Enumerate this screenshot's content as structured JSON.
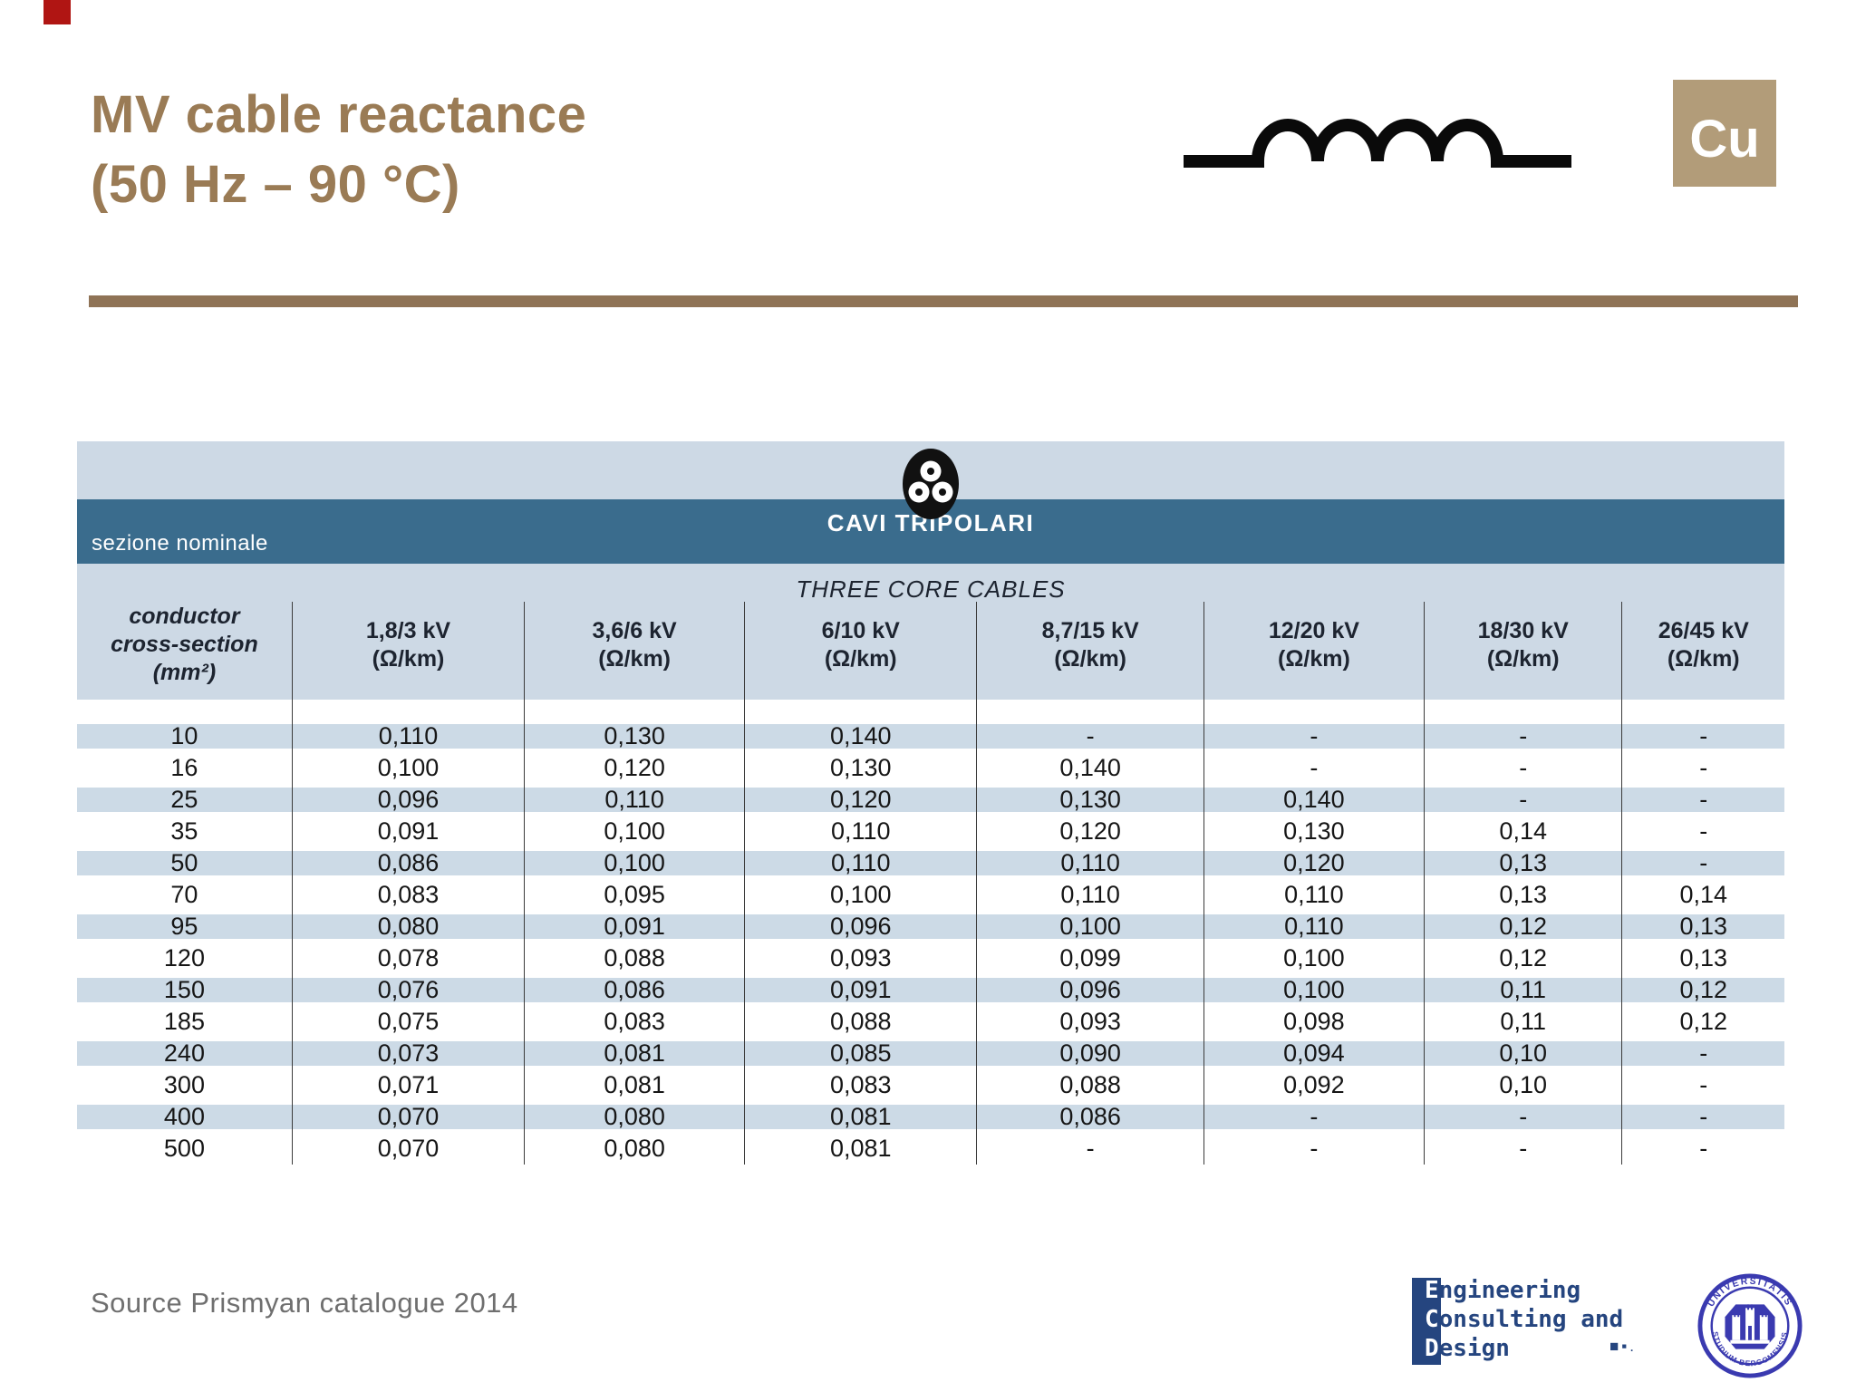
{
  "header": {
    "title_line1": "MV cable reactance",
    "title_line2": "(50 Hz – 90 °C)",
    "cu_badge_label": "Cu"
  },
  "table": {
    "category_label_italian": "sezione nominale",
    "group_title_italian": "CAVI TRIPOLARI",
    "group_title_english": "THREE CORE CABLES",
    "first_column_header": {
      "line1": "conductor",
      "line2": "cross-section",
      "line3": "(mm²)"
    },
    "voltage_columns": [
      {
        "voltage": "1,8/3 kV",
        "unit": "(Ω/km)"
      },
      {
        "voltage": "3,6/6 kV",
        "unit": "(Ω/km)"
      },
      {
        "voltage": "6/10 kV",
        "unit": "(Ω/km)"
      },
      {
        "voltage": "8,7/15 kV",
        "unit": "(Ω/km)"
      },
      {
        "voltage": "12/20 kV",
        "unit": "(Ω/km)"
      },
      {
        "voltage": "18/30 kV",
        "unit": "(Ω/km)"
      },
      {
        "voltage": "26/45 kV",
        "unit": "(Ω/km)"
      }
    ],
    "rows": [
      {
        "cross_section": "10",
        "values": [
          "0,110",
          "0,130",
          "0,140",
          "-",
          "-",
          "-",
          "-"
        ]
      },
      {
        "cross_section": "16",
        "values": [
          "0,100",
          "0,120",
          "0,130",
          "0,140",
          "-",
          "-",
          "-"
        ]
      },
      {
        "cross_section": "25",
        "values": [
          "0,096",
          "0,110",
          "0,120",
          "0,130",
          "0,140",
          "-",
          "-"
        ]
      },
      {
        "cross_section": "35",
        "values": [
          "0,091",
          "0,100",
          "0,110",
          "0,120",
          "0,130",
          "0,14",
          "-"
        ]
      },
      {
        "cross_section": "50",
        "values": [
          "0,086",
          "0,100",
          "0,110",
          "0,110",
          "0,120",
          "0,13",
          "-"
        ]
      },
      {
        "cross_section": "70",
        "values": [
          "0,083",
          "0,095",
          "0,100",
          "0,110",
          "0,110",
          "0,13",
          "0,14"
        ]
      },
      {
        "cross_section": "95",
        "values": [
          "0,080",
          "0,091",
          "0,096",
          "0,100",
          "0,110",
          "0,12",
          "0,13"
        ]
      },
      {
        "cross_section": "120",
        "values": [
          "0,078",
          "0,088",
          "0,093",
          "0,099",
          "0,100",
          "0,12",
          "0,13"
        ]
      },
      {
        "cross_section": "150",
        "values": [
          "0,076",
          "0,086",
          "0,091",
          "0,096",
          "0,100",
          "0,11",
          "0,12"
        ]
      },
      {
        "cross_section": "185",
        "values": [
          "0,075",
          "0,083",
          "0,088",
          "0,093",
          "0,098",
          "0,11",
          "0,12"
        ]
      },
      {
        "cross_section": "240",
        "values": [
          "0,073",
          "0,081",
          "0,085",
          "0,090",
          "0,094",
          "0,10",
          "-"
        ]
      },
      {
        "cross_section": "300",
        "values": [
          "0,071",
          "0,081",
          "0,083",
          "0,088",
          "0,092",
          "0,10",
          "-"
        ]
      },
      {
        "cross_section": "400",
        "values": [
          "0,070",
          "0,080",
          "0,081",
          "0,086",
          "-",
          "-",
          "-"
        ]
      },
      {
        "cross_section": "500",
        "values": [
          "0,070",
          "0,080",
          "0,081",
          "-",
          "-",
          "-",
          "-"
        ]
      }
    ]
  },
  "footer": {
    "source_text": "Source Prismyan catalogue 2014",
    "ecd_logo": {
      "lines": [
        "Engineering",
        "Consulting and",
        "Design"
      ],
      "dots": "■▪."
    },
    "emblem": {
      "top_text": "UNIVERSITATIS",
      "bottom_text": "STUDIUM BERGOMENSIS"
    }
  },
  "icons": {
    "inductor": "inductor-coil-icon",
    "cable": "three-core-cable-icon",
    "emblem": "university-seal-icon"
  },
  "colors": {
    "accent_brown": "#9a7b55",
    "divider_brown": "#8f7356",
    "cu_badge_tan": "#b29c79",
    "band_dark_blue": "#3a6c8d",
    "band_light_blue": "#cdd9e5",
    "row_stripe_blue": "#ccdae6",
    "logo_navy": "#25457f",
    "emblem_blue": "#3a3ab0",
    "corner_mark_red": "#b01513"
  }
}
